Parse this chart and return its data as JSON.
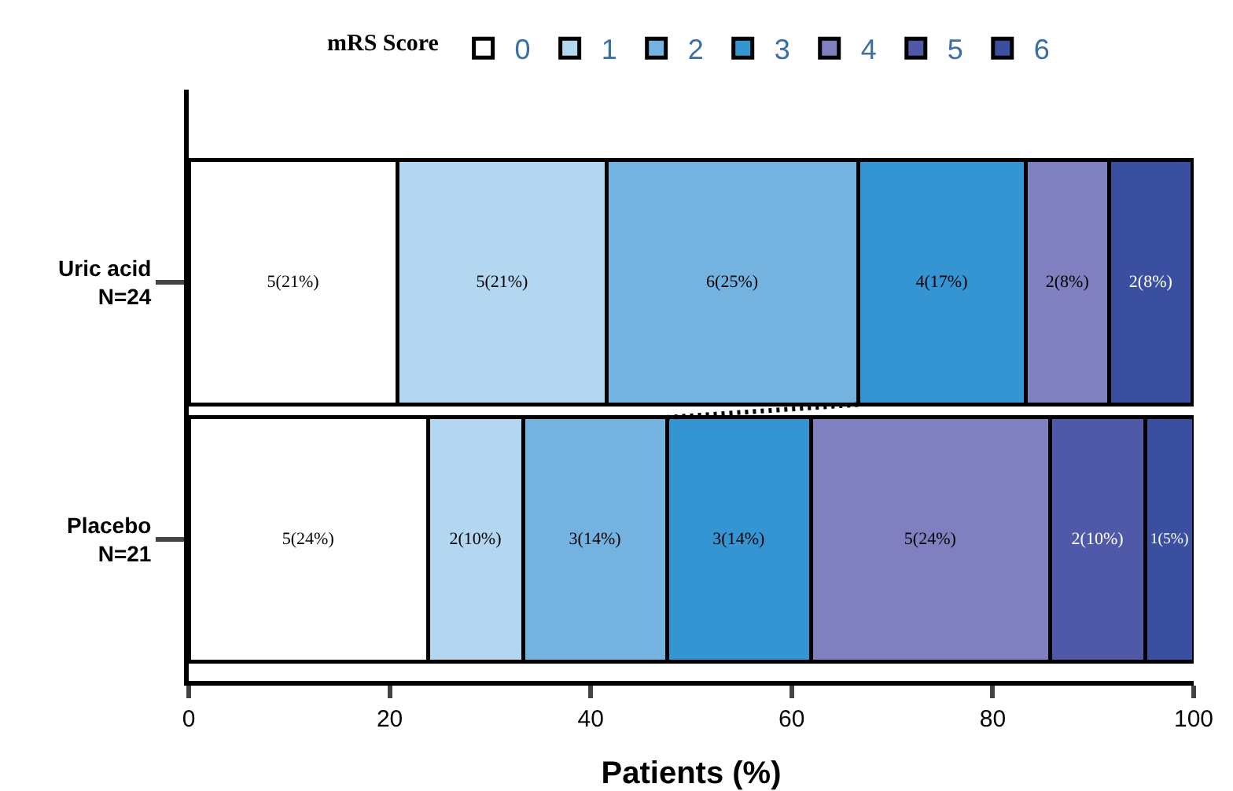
{
  "chart_data": {
    "type": "bar",
    "orientation": "horizontal",
    "stacked": true,
    "legend": "top",
    "legend_title": "mRS Score",
    "xlabel": "Patients (%)",
    "categories": [
      "Uric acid\nN=24",
      "Placebo\nN=21"
    ],
    "xlim": [
      0,
      100
    ],
    "xticks": [
      0,
      20,
      40,
      60,
      80,
      100
    ],
    "grid": false,
    "series": [
      {
        "name": "0",
        "color": "#ffffff",
        "values": [
          20.8,
          23.8
        ],
        "value_labels": [
          "5(21%)",
          "5(24%)"
        ]
      },
      {
        "name": "1",
        "color": "#b3d7f0",
        "values": [
          20.8,
          9.5
        ],
        "value_labels": [
          "5(21%)",
          "2(10%)"
        ]
      },
      {
        "name": "2",
        "color": "#74b3e0",
        "values": [
          25,
          14.3
        ],
        "value_labels": [
          "6(25%)",
          "3(14%)"
        ]
      },
      {
        "name": "3",
        "color": "#3595d2",
        "values": [
          16.7,
          14.3
        ],
        "value_labels": [
          "4(17%)",
          "3(14%)"
        ]
      },
      {
        "name": "4",
        "color": "#8080c0",
        "values": [
          8.3,
          23.8
        ],
        "value_labels": [
          "2(8%)",
          "5(24%)"
        ]
      },
      {
        "name": "5",
        "color": "#5058a8",
        "values": [
          0,
          9.5
        ],
        "value_labels": [
          null,
          "2(10%)"
        ]
      },
      {
        "name": "6",
        "color": "#3a4fa0",
        "values": [
          8.3,
          4.8
        ],
        "value_labels": [
          "2(8%)",
          "1(5%)"
        ]
      }
    ]
  }
}
